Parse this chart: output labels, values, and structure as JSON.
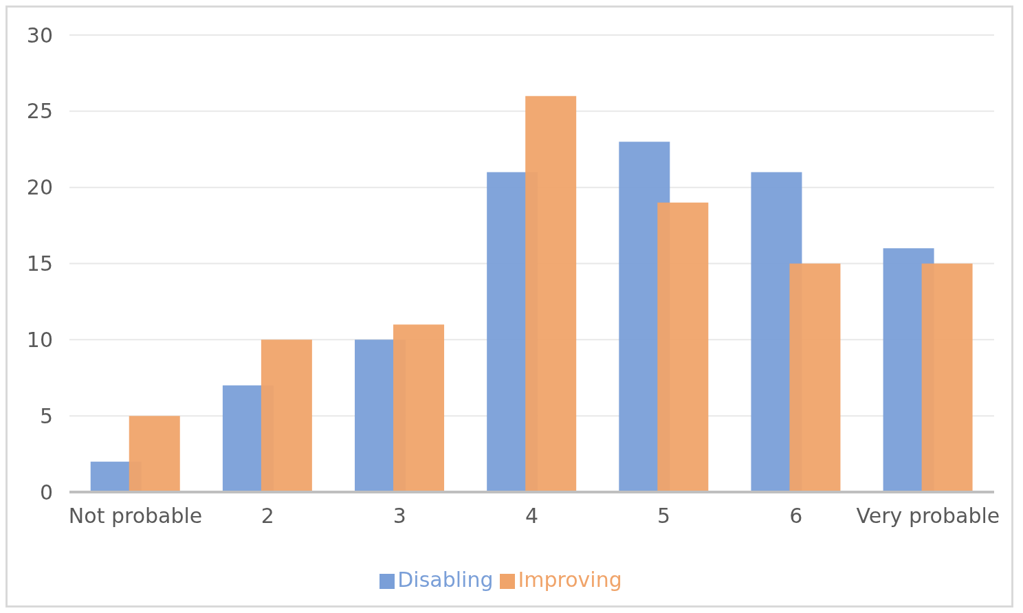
{
  "chart_data": {
    "type": "bar",
    "categories": [
      "Not probable",
      "2",
      "3",
      "4",
      "5",
      "6",
      "Very probable"
    ],
    "series": [
      {
        "name": "Disabling",
        "color": "#7a9fd8",
        "values": [
          2,
          7,
          10,
          21,
          23,
          21,
          16
        ]
      },
      {
        "name": "Improving",
        "color": "#f0a46a",
        "values": [
          5,
          10,
          11,
          26,
          19,
          15,
          15
        ]
      }
    ],
    "ylim": [
      0,
      30
    ],
    "yticks": [
      0,
      5,
      10,
      15,
      20,
      25,
      30
    ],
    "grid": "y",
    "legend": "bottom"
  }
}
